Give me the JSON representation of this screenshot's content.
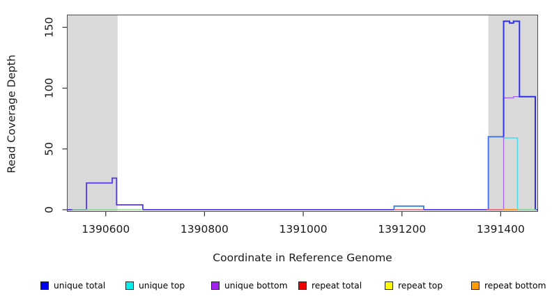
{
  "chart_data": {
    "type": "line",
    "subtype": "step-coverage",
    "title": "",
    "xlabel": "Coordinate in Reference Genome",
    "ylabel": "Read Coverage Depth",
    "xlim": [
      1390522,
      1391475
    ],
    "ylim": [
      0,
      160
    ],
    "grid": false,
    "legend_position": "bottom",
    "xticks": [
      1390600,
      1390800,
      1391000,
      1391200,
      1391400
    ],
    "yticks": [
      0,
      50,
      100,
      150
    ],
    "shaded_regions": [
      {
        "name": "highlight-region-left",
        "x0": 1390522,
        "x1": 1390624,
        "color": "#d9d9d9"
      },
      {
        "name": "highlight-region-right",
        "x0": 1391375,
        "x1": 1391475,
        "color": "#d9d9d9"
      }
    ],
    "legend": [
      {
        "label": "unique total",
        "color": "#0000ee"
      },
      {
        "label": "unique top",
        "color": "#00eeee"
      },
      {
        "label": "unique bottom",
        "color": "#a020f0"
      },
      {
        "label": "repeat total",
        "color": "#ee0000"
      },
      {
        "label": "repeat top",
        "color": "#ffff00"
      },
      {
        "label": "repeat bottom",
        "color": "#ff9d00"
      }
    ],
    "series": [
      {
        "name": "unique total",
        "color": "#0000ee",
        "steps": [
          [
            1390561,
            1390613,
            22
          ],
          [
            1390613,
            1390622,
            26
          ],
          [
            1390622,
            1390675,
            4
          ],
          [
            1391184,
            1391244,
            3
          ],
          [
            1391375,
            1391406,
            60
          ],
          [
            1391406,
            1391438,
            155
          ],
          [
            1391438,
            1391470,
            93
          ]
        ]
      },
      {
        "name": "unique top",
        "color": "#00eeee",
        "steps": [
          [
            1391375,
            1391406,
            60
          ],
          [
            1391406,
            1391434,
            59
          ]
        ]
      },
      {
        "name": "unique bottom",
        "color": "#a020f0",
        "steps": [
          [
            1391406,
            1391470,
            93
          ]
        ]
      },
      {
        "name": "repeat total",
        "color": "#ee0000",
        "steps": []
      },
      {
        "name": "repeat top",
        "color": "#ffff00",
        "steps": []
      },
      {
        "name": "repeat bottom",
        "color": "#ff9d00",
        "steps": []
      }
    ],
    "drawn_lines": [
      {
        "name": "unique-top-line",
        "color": "#45dde8",
        "width": 1.5,
        "points": [
          [
            1391375,
            60
          ],
          [
            1391406,
            60
          ],
          [
            1391406,
            59
          ],
          [
            1391434,
            59
          ],
          [
            1391434,
            0
          ],
          [
            1391475,
            0
          ]
        ]
      },
      {
        "name": "unique-bottom-line",
        "color": "#a96ae6",
        "width": 1.4,
        "points": [
          [
            1391406,
            0
          ],
          [
            1391406,
            92
          ],
          [
            1391426,
            92
          ],
          [
            1391426,
            93
          ],
          [
            1391470,
            93
          ],
          [
            1391470,
            0
          ],
          [
            1391475,
            0
          ]
        ]
      },
      {
        "name": "unique-total-left",
        "color": "#5335ec",
        "width": 1.8,
        "points": [
          [
            1390522,
            0
          ],
          [
            1390561,
            0
          ],
          [
            1390561,
            22
          ],
          [
            1390613,
            22
          ],
          [
            1390613,
            26
          ],
          [
            1390622,
            26
          ],
          [
            1390622,
            4
          ],
          [
            1390675,
            4
          ],
          [
            1390675,
            0
          ],
          [
            1391184,
            0
          ]
        ]
      },
      {
        "name": "unique-total-bump",
        "color": "#2f7ff0",
        "width": 1.8,
        "points": [
          [
            1391184,
            0
          ],
          [
            1391184,
            3
          ],
          [
            1391244,
            3
          ],
          [
            1391244,
            0
          ]
        ]
      },
      {
        "name": "unique-total-mid",
        "color": "#5335ec",
        "width": 1.8,
        "points": [
          [
            1391244,
            0
          ],
          [
            1391375,
            0
          ]
        ]
      },
      {
        "name": "unique-total-rise",
        "color": "#4677f0",
        "width": 2,
        "points": [
          [
            1391375,
            0
          ],
          [
            1391375,
            60
          ],
          [
            1391406,
            60
          ]
        ]
      },
      {
        "name": "unique-total-peak",
        "color": "#3030e8",
        "width": 2,
        "points": [
          [
            1391406,
            60
          ],
          [
            1391406,
            155
          ],
          [
            1391418,
            155
          ],
          [
            1391418,
            153.5
          ],
          [
            1391426,
            153.5
          ],
          [
            1391426,
            155
          ],
          [
            1391438,
            155
          ],
          [
            1391438,
            93
          ],
          [
            1391470,
            93
          ],
          [
            1391470,
            0
          ],
          [
            1391475,
            0
          ]
        ]
      },
      {
        "name": "baseline-green-left",
        "color": "#90d890",
        "width": 1.5,
        "points": [
          [
            1390532,
            0
          ],
          [
            1390675,
            0
          ]
        ]
      },
      {
        "name": "baseline-red-bump",
        "color": "#f05570",
        "width": 1.5,
        "points": [
          [
            1391184,
            0
          ],
          [
            1391244,
            0
          ]
        ]
      },
      {
        "name": "baseline-red-right",
        "color": "#f05570",
        "width": 1.5,
        "points": [
          [
            1391371,
            0
          ],
          [
            1391404,
            0
          ]
        ]
      },
      {
        "name": "baseline-orange-right",
        "color": "#ff9b1e",
        "width": 2,
        "points": [
          [
            1391404,
            0
          ],
          [
            1391434,
            0
          ]
        ]
      },
      {
        "name": "baseline-green-right",
        "color": "#90d890",
        "width": 1.5,
        "points": [
          [
            1391434,
            0
          ],
          [
            1391473,
            0
          ]
        ]
      }
    ]
  }
}
